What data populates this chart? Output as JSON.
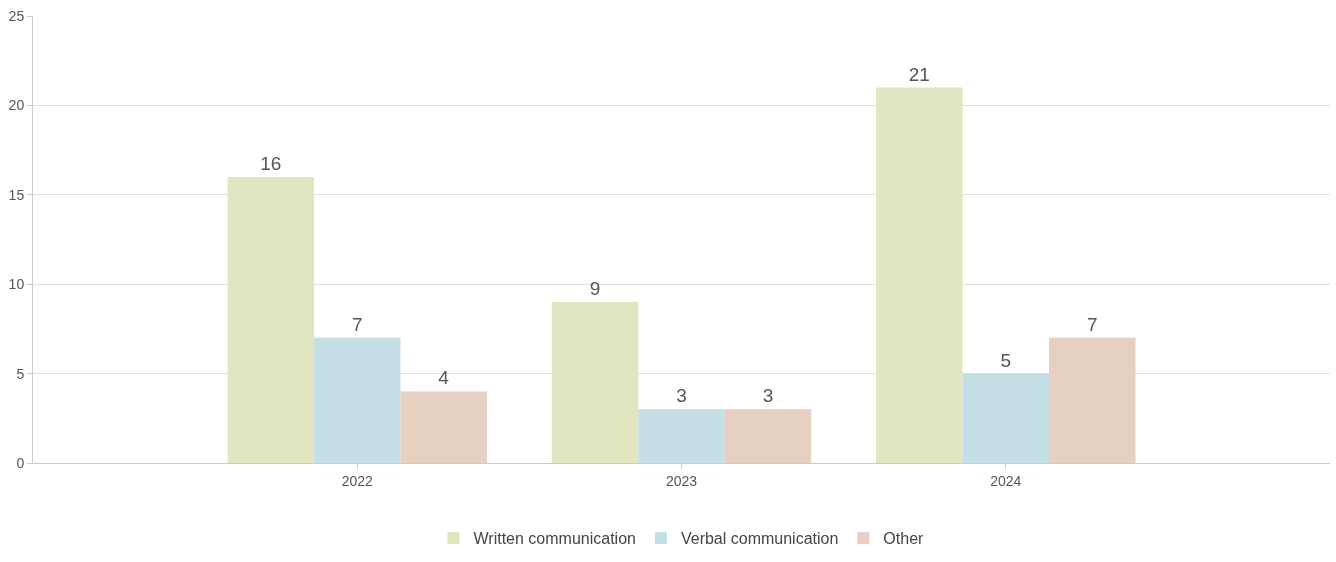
{
  "chart_data": {
    "type": "bar",
    "categories": [
      "2022",
      "2023",
      "2024"
    ],
    "series": [
      {
        "name": "Written communication",
        "color": "#e1e6c1",
        "values": [
          16,
          9,
          21
        ]
      },
      {
        "name": "Verbal communication",
        "color": "#c4e0e6",
        "values": [
          7,
          3,
          5
        ]
      },
      {
        "name": "Other",
        "color": "#e6d0c1",
        "values": [
          4,
          3,
          7
        ]
      }
    ],
    "ylim": [
      0,
      25
    ],
    "yticks": [
      0,
      5,
      10,
      15,
      20,
      25
    ],
    "grid": "y",
    "legend": "bottom",
    "data_labels": true
  }
}
